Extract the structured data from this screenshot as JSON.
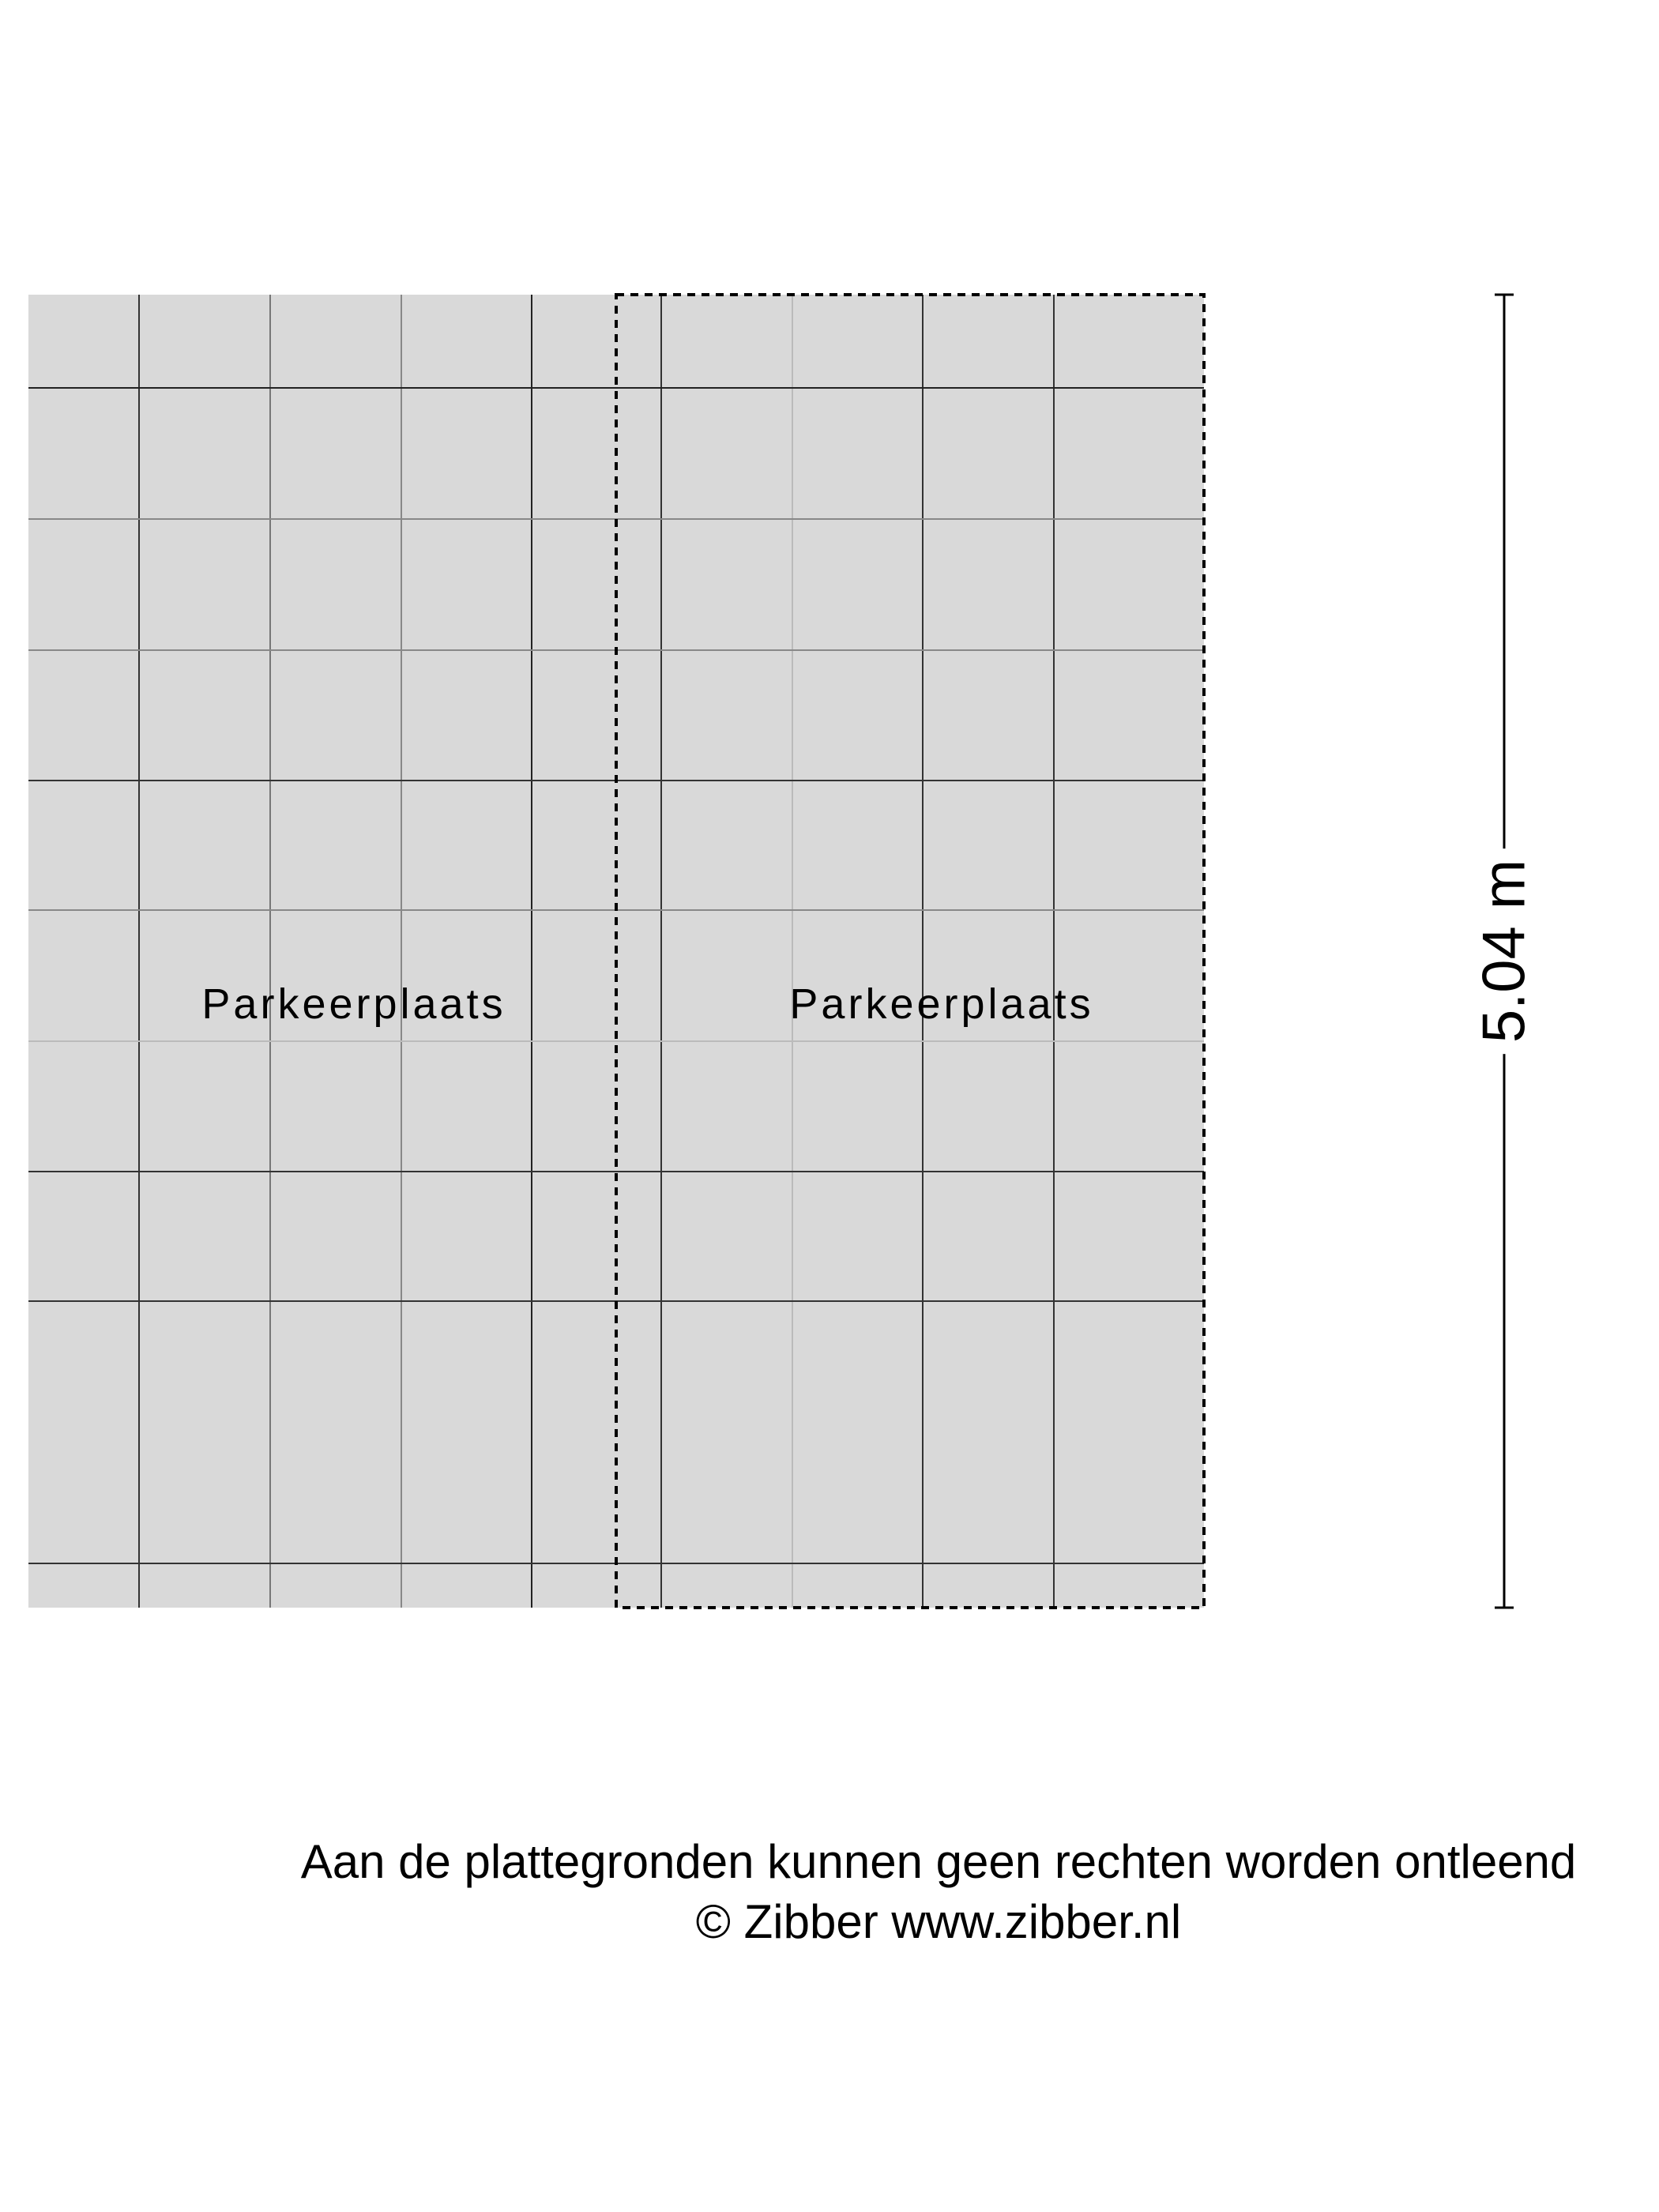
{
  "floorplan": {
    "rooms": [
      {
        "label": "Parkeerplaats"
      },
      {
        "label": "Parkeerplaats"
      }
    ],
    "dimension": "5.04 m",
    "fill_color": "#d9d9d9"
  },
  "footer": {
    "disclaimer": "Aan de plattegronden kunnen geen rechten worden ontleend",
    "copyright": "© Zibber www.zibber.nl"
  }
}
